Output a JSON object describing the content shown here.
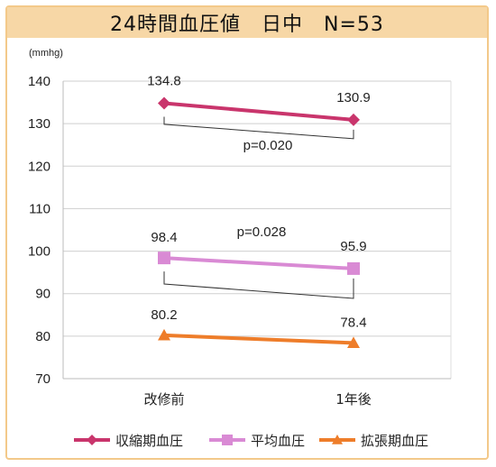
{
  "chart_data": {
    "type": "line",
    "title": "24時間血圧値　日中　N=53",
    "ylabel": "(mmhg)",
    "ylim": [
      70,
      140
    ],
    "yticks": [
      70,
      80,
      90,
      100,
      110,
      120,
      130,
      140
    ],
    "categories": [
      "改修前",
      "1年後"
    ],
    "series": [
      {
        "name": "収縮期血圧",
        "values": [
          134.8,
          130.9
        ],
        "labels": [
          "134.8",
          "130.9"
        ],
        "color": "#c9356c",
        "marker": "diamond"
      },
      {
        "name": "平均血圧",
        "values": [
          98.4,
          95.9
        ],
        "labels": [
          "98.4",
          "95.9"
        ],
        "color": "#d98ad4",
        "marker": "square"
      },
      {
        "name": "拡張期血圧",
        "values": [
          80.2,
          78.4
        ],
        "labels": [
          "80.2",
          "78.4"
        ],
        "color": "#ee7d2a",
        "marker": "triangle"
      }
    ],
    "annotations": [
      {
        "text": "p=0.020",
        "series": 0,
        "bracket_value": 129
      },
      {
        "text": "p=0.028",
        "series": 1,
        "bracket_value": 91
      }
    ],
    "grid": true,
    "legend_position": "bottom"
  }
}
